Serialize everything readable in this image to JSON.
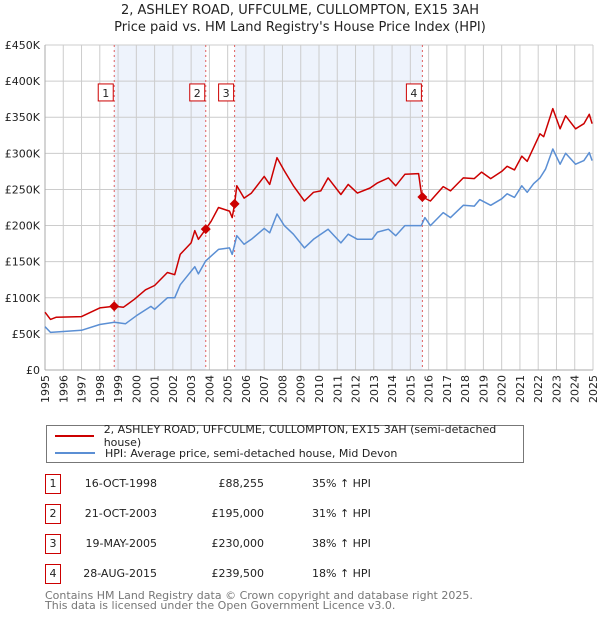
{
  "title_line1": "2, ASHLEY ROAD, UFFCULME, CULLOMPTON, EX15 3AH",
  "title_line2": "Price paid vs. HM Land Registry's House Price Index (HPI)",
  "chart_data": {
    "type": "line",
    "title": "2, ASHLEY ROAD, UFFCULME, CULLOMPTON, EX15 3AH — Price paid vs. HM Land Registry's House Price Index (HPI)",
    "xlim": [
      1995,
      2025
    ],
    "ylim": [
      0,
      450
    ],
    "y_ticks": [
      {
        "v": 0,
        "label": "£0"
      },
      {
        "v": 50,
        "label": "£50K"
      },
      {
        "v": 100,
        "label": "£100K"
      },
      {
        "v": 150,
        "label": "£150K"
      },
      {
        "v": 200,
        "label": "£200K"
      },
      {
        "v": 250,
        "label": "£250K"
      },
      {
        "v": 300,
        "label": "£300K"
      },
      {
        "v": 350,
        "label": "£350K"
      },
      {
        "v": 400,
        "label": "£400K"
      },
      {
        "v": 450,
        "label": "£450K"
      }
    ],
    "x_ticks": [
      "1995",
      "1996",
      "1997",
      "1998",
      "1999",
      "2000",
      "2001",
      "2002",
      "2003",
      "2004",
      "2005",
      "2006",
      "2007",
      "2008",
      "2009",
      "2010",
      "2011",
      "2012",
      "2013",
      "2014",
      "2015",
      "2016",
      "2017",
      "2018",
      "2019",
      "2020",
      "2021",
      "2022",
      "2023",
      "2024",
      "2025"
    ],
    "grid": true,
    "colors": {
      "property": "#cc0000",
      "hpi": "#5b8fd4",
      "shade": "#eef3fc",
      "marker_line": "#e06060"
    },
    "shaded_ranges": [
      [
        1998.79,
        2003.8
      ],
      [
        2005.38,
        2015.66
      ]
    ],
    "series": [
      {
        "name": "2, ASHLEY ROAD, UFFCULME, CULLOMPTON, EX15 3AH (semi-detached house)",
        "key": "property",
        "points": [
          [
            1995,
            80
          ],
          [
            1995.3,
            70
          ],
          [
            1995.6,
            73
          ],
          [
            1997,
            74
          ],
          [
            1998,
            86
          ],
          [
            1998.79,
            88.3
          ],
          [
            1999.3,
            87
          ],
          [
            1999.9,
            98
          ],
          [
            2000.5,
            111
          ],
          [
            2001,
            117
          ],
          [
            2001.7,
            135
          ],
          [
            2002.1,
            132
          ],
          [
            2002.4,
            160
          ],
          [
            2003,
            176
          ],
          [
            2003.2,
            193
          ],
          [
            2003.4,
            181
          ],
          [
            2003.8,
            195
          ],
          [
            2004.1,
            206
          ],
          [
            2004.5,
            225
          ],
          [
            2005.1,
            220
          ],
          [
            2005.25,
            211
          ],
          [
            2005.38,
            230
          ],
          [
            2005.5,
            255
          ],
          [
            2005.9,
            238
          ],
          [
            2006.3,
            245
          ],
          [
            2007,
            268
          ],
          [
            2007.3,
            257
          ],
          [
            2007.7,
            294
          ],
          [
            2008.1,
            276
          ],
          [
            2008.6,
            255
          ],
          [
            2009.2,
            234
          ],
          [
            2009.7,
            246
          ],
          [
            2010.1,
            248
          ],
          [
            2010.5,
            266
          ],
          [
            2011.2,
            243
          ],
          [
            2011.6,
            257
          ],
          [
            2012.1,
            245
          ],
          [
            2012.8,
            252
          ],
          [
            2013.2,
            259
          ],
          [
            2013.8,
            266
          ],
          [
            2014.2,
            255
          ],
          [
            2014.7,
            271
          ],
          [
            2015.45,
            272
          ],
          [
            2015.6,
            245
          ],
          [
            2015.66,
            239.5
          ],
          [
            2016.1,
            234
          ],
          [
            2016.8,
            254
          ],
          [
            2017.2,
            248
          ],
          [
            2017.9,
            266
          ],
          [
            2018.5,
            265
          ],
          [
            2018.9,
            274
          ],
          [
            2019.4,
            265
          ],
          [
            2020,
            275
          ],
          [
            2020.3,
            282
          ],
          [
            2020.7,
            277
          ],
          [
            2021.1,
            296
          ],
          [
            2021.4,
            289
          ],
          [
            2021.75,
            308
          ],
          [
            2022.1,
            327
          ],
          [
            2022.3,
            323
          ],
          [
            2022.8,
            362
          ],
          [
            2023.2,
            334
          ],
          [
            2023.5,
            352
          ],
          [
            2024.05,
            334
          ],
          [
            2024.5,
            341
          ],
          [
            2024.8,
            354
          ],
          [
            2024.95,
            341
          ]
        ]
      },
      {
        "name": "HPI: Average price, semi-detached house, Mid Devon",
        "key": "hpi",
        "points": [
          [
            1995,
            60
          ],
          [
            1995.3,
            52
          ],
          [
            1997,
            55
          ],
          [
            1998,
            63
          ],
          [
            1998.8,
            66
          ],
          [
            1999.4,
            64
          ],
          [
            2000,
            75
          ],
          [
            2000.8,
            88
          ],
          [
            2001,
            84
          ],
          [
            2001.7,
            100
          ],
          [
            2002.1,
            100
          ],
          [
            2002.4,
            118
          ],
          [
            2003.2,
            143
          ],
          [
            2003.4,
            133
          ],
          [
            2003.8,
            151
          ],
          [
            2004.5,
            167
          ],
          [
            2005.1,
            169
          ],
          [
            2005.25,
            160
          ],
          [
            2005.5,
            186
          ],
          [
            2005.9,
            174
          ],
          [
            2006.3,
            181
          ],
          [
            2007,
            196
          ],
          [
            2007.3,
            190
          ],
          [
            2007.7,
            216
          ],
          [
            2008.1,
            200
          ],
          [
            2008.6,
            188
          ],
          [
            2009.2,
            169
          ],
          [
            2009.7,
            181
          ],
          [
            2010.5,
            195
          ],
          [
            2011.2,
            176
          ],
          [
            2011.6,
            188
          ],
          [
            2012.1,
            181
          ],
          [
            2012.9,
            181
          ],
          [
            2013.2,
            191
          ],
          [
            2013.8,
            195
          ],
          [
            2014.2,
            186
          ],
          [
            2014.7,
            200
          ],
          [
            2015.6,
            200
          ],
          [
            2015.8,
            211
          ],
          [
            2016.1,
            200
          ],
          [
            2016.8,
            218
          ],
          [
            2017.2,
            211
          ],
          [
            2017.9,
            228
          ],
          [
            2018.5,
            227
          ],
          [
            2018.8,
            236
          ],
          [
            2019.4,
            228
          ],
          [
            2020,
            237
          ],
          [
            2020.3,
            244
          ],
          [
            2020.7,
            239
          ],
          [
            2021.1,
            255
          ],
          [
            2021.4,
            246
          ],
          [
            2021.75,
            258
          ],
          [
            2022.1,
            266
          ],
          [
            2022.4,
            278
          ],
          [
            2022.8,
            306
          ],
          [
            2023.2,
            285
          ],
          [
            2023.5,
            300
          ],
          [
            2024.05,
            285
          ],
          [
            2024.5,
            290
          ],
          [
            2024.8,
            301
          ],
          [
            2024.95,
            290
          ]
        ]
      }
    ],
    "sales": [
      {
        "id": "1",
        "x": 1998.79,
        "y": 88.255
      },
      {
        "id": "2",
        "x": 2003.8,
        "y": 195
      },
      {
        "id": "3",
        "x": 2005.38,
        "y": 230
      },
      {
        "id": "4",
        "x": 2015.66,
        "y": 239.5
      }
    ],
    "marker_label_value": 385
  },
  "legend": {
    "property": "2, ASHLEY ROAD, UFFCULME, CULLOMPTON, EX15 3AH (semi-detached house)",
    "hpi": "HPI: Average price, semi-detached house, Mid Devon"
  },
  "transactions": [
    {
      "id": "1",
      "date": "16-OCT-1998",
      "price": "£88,255",
      "hpi": "35% ↑ HPI"
    },
    {
      "id": "2",
      "date": "21-OCT-2003",
      "price": "£195,000",
      "hpi": "31% ↑ HPI"
    },
    {
      "id": "3",
      "date": "19-MAY-2005",
      "price": "£230,000",
      "hpi": "38% ↑ HPI"
    },
    {
      "id": "4",
      "date": "28-AUG-2015",
      "price": "£239,500",
      "hpi": "18% ↑ HPI"
    }
  ],
  "footer": {
    "line1": "Contains HM Land Registry data © Crown copyright and database right 2025.",
    "line2": "This data is licensed under the Open Government Licence v3.0."
  }
}
